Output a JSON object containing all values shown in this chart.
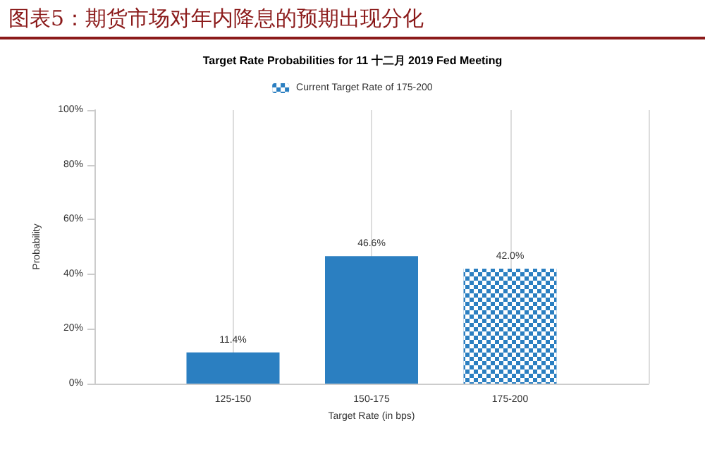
{
  "chart_data": {
    "type": "bar",
    "title": "图表5：期货市场对年内降息的预期出现分化",
    "subtitle": "Target Rate Probabilities for 11 十二月 2019 Fed Meeting",
    "xlabel": "Target Rate (in bps)",
    "ylabel": "Probability",
    "categories": [
      null,
      "125-150",
      "150-175",
      "175-200",
      null
    ],
    "series": [
      {
        "color": "#2b7fc1",
        "values": [
          null,
          11.4,
          46.6,
          null,
          null
        ],
        "value_labels": [
          null,
          "11.4%",
          "46.6%",
          null,
          null
        ]
      },
      {
        "name": "Current Target Rate of 175-200",
        "color": "#2b7fc1",
        "values": [
          null,
          null,
          null,
          42.0,
          null
        ],
        "value_labels": [
          null,
          null,
          null,
          "42.0%",
          null
        ]
      }
    ],
    "stacked": true,
    "ylim": [
      0,
      100
    ],
    "yticks": [
      {
        "value": 0,
        "label": "0%"
      },
      {
        "value": 20,
        "label": "20%"
      },
      {
        "value": 40,
        "label": "40%"
      },
      {
        "value": 60,
        "label": "60%"
      },
      {
        "value": 80,
        "label": "80%"
      },
      {
        "value": 100,
        "label": "100%"
      }
    ],
    "grid": "x",
    "legend": "top"
  }
}
